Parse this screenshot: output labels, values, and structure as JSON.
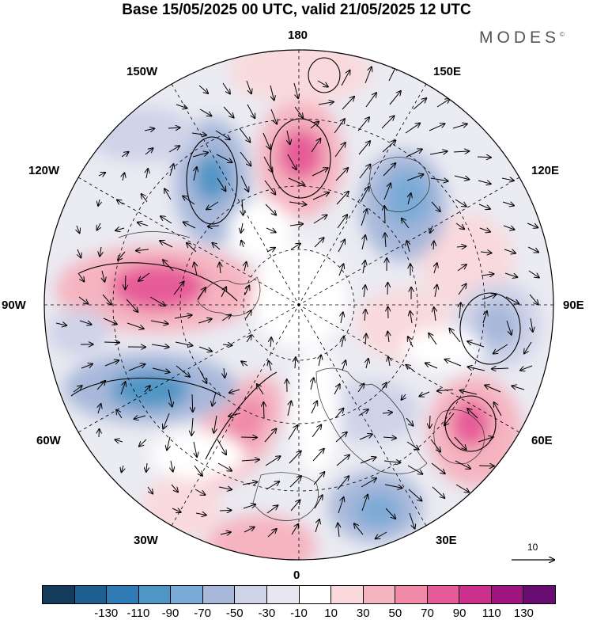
{
  "title": "Base 15/05/2025 00 UTC, valid 21/05/2025 12 UTC",
  "brand": "MODES",
  "brand_mark": "©",
  "longitude_labels": {
    "n180": "180",
    "w150": "150W",
    "e150": "150E",
    "w120": "120W",
    "e120": "120E",
    "w90": "90W",
    "e90": "90E",
    "w60": "60W",
    "e60": "60E",
    "w30": "30W",
    "e30": "30E",
    "s0": "0"
  },
  "vector_scale_label": "10",
  "colorbar": {
    "colors": [
      "#143a5c",
      "#1d5f8f",
      "#2f7bb3",
      "#4f95c5",
      "#7aaad6",
      "#a8b8da",
      "#cfd3e8",
      "#e7e6f1",
      "#ffffff",
      "#f9d9dc",
      "#f5b4c0",
      "#f08aa8",
      "#e65b98",
      "#cc2f8c",
      "#a11580",
      "#6a0d72"
    ],
    "labels": [
      "-130",
      "-110",
      "-90",
      "-70",
      "-50",
      "-30",
      "-10",
      "10",
      "30",
      "50",
      "70",
      "90",
      "110",
      "130"
    ]
  }
}
